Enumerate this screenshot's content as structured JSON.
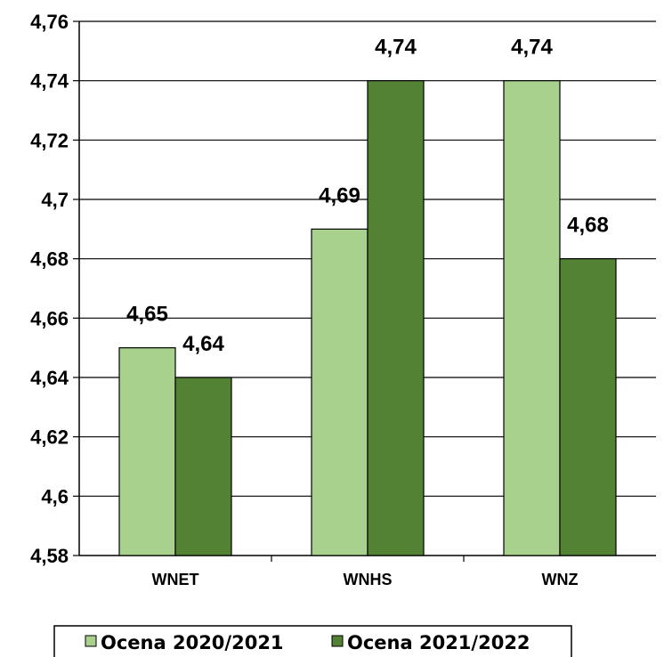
{
  "chart_data": {
    "type": "bar",
    "categories": [
      "WNET",
      "WNHS",
      "WNZ"
    ],
    "series": [
      {
        "name": "Ocena 2020/2021",
        "values": [
          4.65,
          4.69,
          4.74
        ],
        "color": "#a9d18e"
      },
      {
        "name": "Ocena 2021/2022",
        "values": [
          4.64,
          4.74,
          4.68
        ],
        "color": "#548235"
      }
    ],
    "data_labels": [
      [
        "4,65",
        "4,69",
        "4,74"
      ],
      [
        "4,64",
        "4,74",
        "4,68"
      ]
    ],
    "y_ticks": [
      4.58,
      4.6,
      4.62,
      4.64,
      4.66,
      4.68,
      4.7,
      4.72,
      4.74,
      4.76
    ],
    "y_tick_labels": [
      "4,58",
      "4,6",
      "4,62",
      "4,64",
      "4,66",
      "4,68",
      "4,7",
      "4,72",
      "4,74",
      "4,76"
    ],
    "ylim": [
      4.58,
      4.76
    ],
    "grid": true,
    "legend_position": "bottom",
    "title": "",
    "xlabel": "",
    "ylabel": ""
  }
}
